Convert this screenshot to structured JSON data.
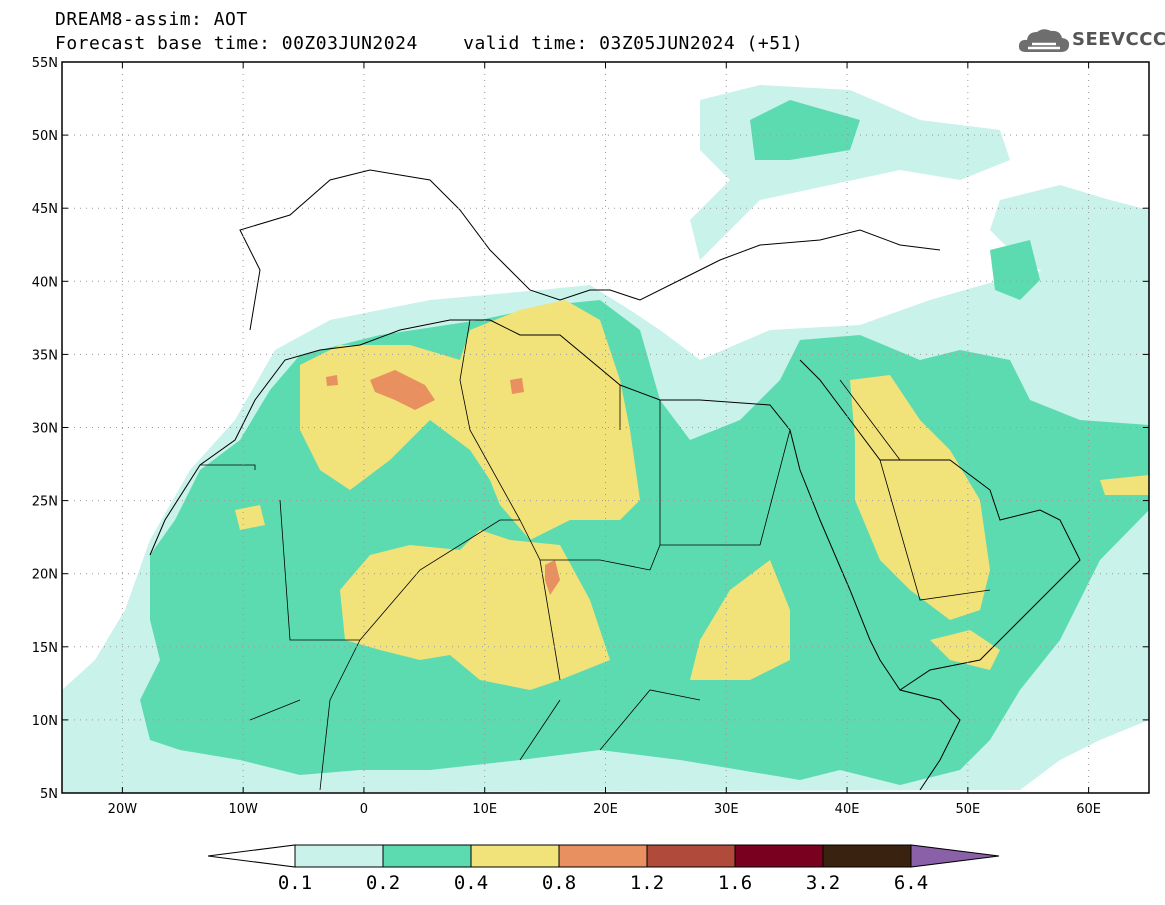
{
  "title": {
    "line1": "DREAM8-assim: AOT",
    "line2": "Forecast base time: 00Z03JUN2024    valid time: 03Z05JUN2024 (+51)"
  },
  "logo": {
    "icon": "cloud-icon",
    "text": "SEEVCCC"
  },
  "map": {
    "lon_range": [
      -25,
      65
    ],
    "lat_range": [
      5,
      55
    ],
    "lat_ticks": [
      "55N",
      "50N",
      "45N",
      "40N",
      "35N",
      "30N",
      "25N",
      "20N",
      "15N",
      "10N",
      "5N"
    ],
    "lon_ticks": [
      "20W",
      "10W",
      "0",
      "10E",
      "20E",
      "30E",
      "40E",
      "50E",
      "60E"
    ],
    "gridlines": "dotted"
  },
  "colorbar": {
    "labels": [
      "0.1",
      "0.2",
      "0.4",
      "0.8",
      "1.2",
      "1.6",
      "3.2",
      "6.4"
    ],
    "colors": [
      "#c8f2ea",
      "#5ddbb0",
      "#f2e27a",
      "#e89060",
      "#b04a3a",
      "#7a0020",
      "#3a2210",
      "#8a60a8"
    ],
    "under_color": "#ffffff"
  }
}
